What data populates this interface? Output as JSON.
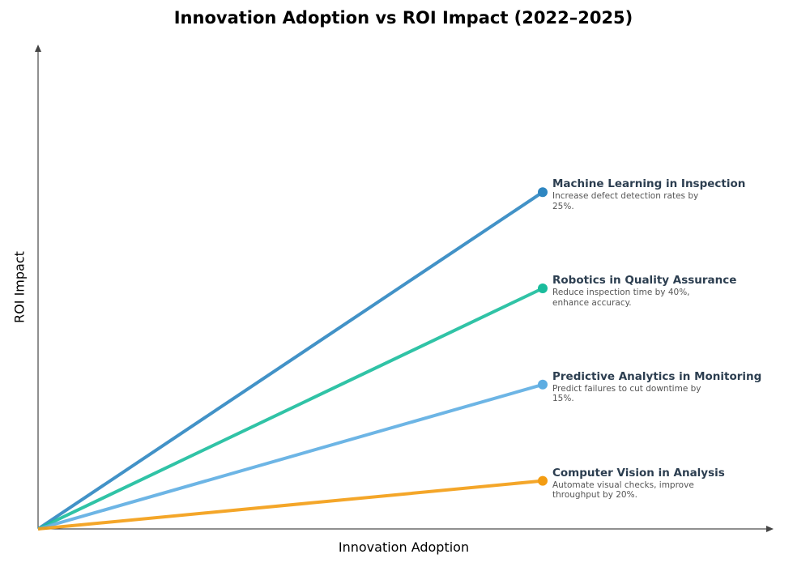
{
  "chart_data": {
    "type": "line",
    "title": "Innovation Adoption vs ROI Impact (2022–2025)",
    "xlabel": "Innovation Adoption",
    "ylabel": "ROI Impact",
    "xlim": [
      0,
      1
    ],
    "ylim": [
      0,
      1
    ],
    "grid": false,
    "series": [
      {
        "name": "Machine Learning in Inspection",
        "description": "Increase defect detection rates by 25%.",
        "x": [
          0,
          0.7
        ],
        "y": [
          0,
          0.7
        ],
        "color": "#2e86c1"
      },
      {
        "name": "Robotics in Quality Assurance",
        "description": "Reduce inspection time by 40%, enhance accuracy.",
        "x": [
          0,
          0.7
        ],
        "y": [
          0,
          0.5
        ],
        "color": "#1abc9c"
      },
      {
        "name": "Predictive Analytics in Monitoring",
        "description": "Predict failures to cut downtime by 15%.",
        "x": [
          0,
          0.7
        ],
        "y": [
          0,
          0.3
        ],
        "color": "#5dade2"
      },
      {
        "name": "Computer Vision in Analysis",
        "description": "Automate visual checks, improve throughput by 20%.",
        "x": [
          0,
          0.7
        ],
        "y": [
          0,
          0.1
        ],
        "color": "#f39c12"
      }
    ]
  }
}
